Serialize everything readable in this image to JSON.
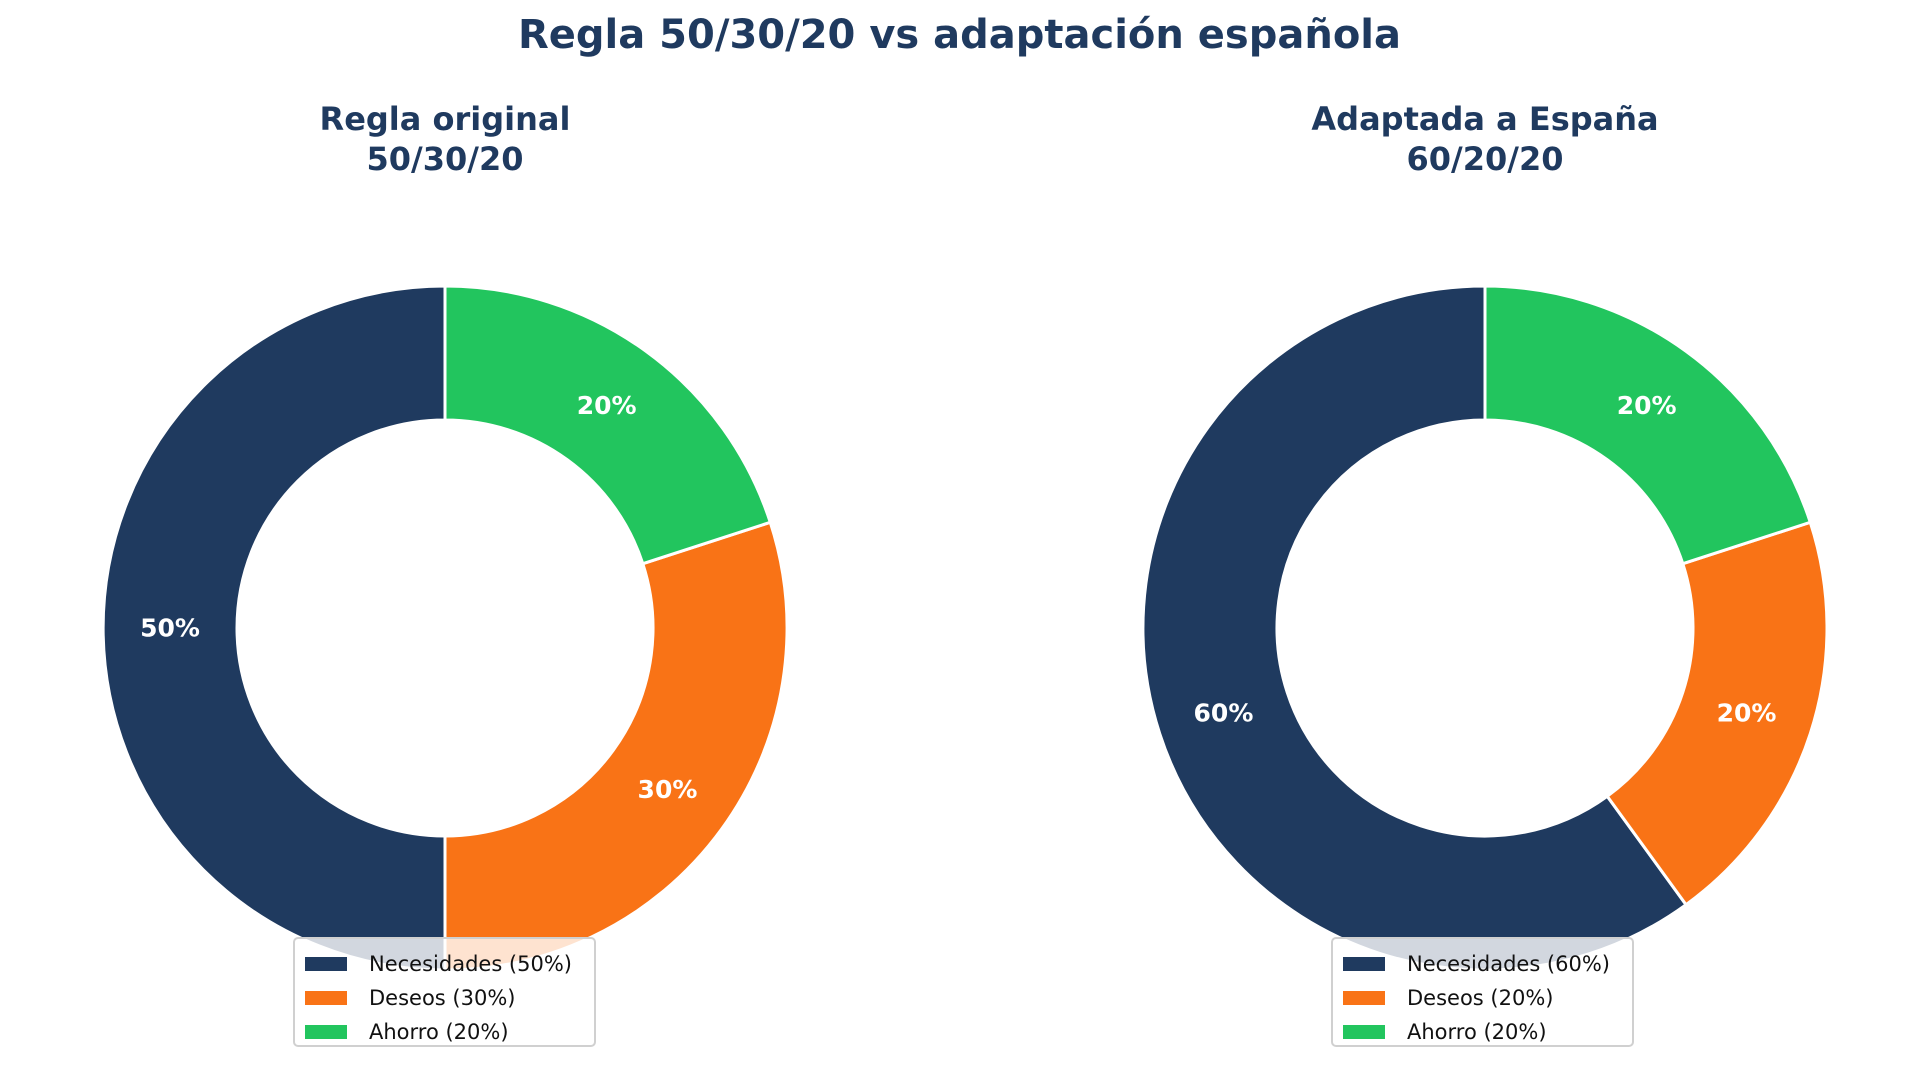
{
  "title": "Regla 50/30/20 vs adaptación española",
  "chart_data": [
    {
      "type": "pie",
      "subtitle": [
        "Regla original",
        "50/30/20"
      ],
      "categories": [
        "Necesidades",
        "Deseos",
        "Ahorro"
      ],
      "values": [
        50,
        30,
        20
      ],
      "labels": [
        "50%",
        "30%",
        "20%"
      ],
      "legend": [
        "Necesidades (50%)",
        "Deseos (30%)",
        "Ahorro (20%)"
      ],
      "colors": [
        "#1f3a5f",
        "#f97316",
        "#22c55e"
      ],
      "donut": true,
      "start_angle": 90,
      "legend_placement": "bottom-center"
    },
    {
      "type": "pie",
      "subtitle": [
        "Adaptada a España",
        "60/20/20"
      ],
      "categories": [
        "Necesidades",
        "Deseos",
        "Ahorro"
      ],
      "values": [
        60,
        20,
        20
      ],
      "labels": [
        "60%",
        "20%",
        "20%"
      ],
      "legend": [
        "Necesidades (60%)",
        "Deseos (20%)",
        "Ahorro (20%)"
      ],
      "colors": [
        "#1f3a5f",
        "#f97316",
        "#22c55e"
      ],
      "donut": true,
      "start_angle": 90,
      "legend_placement": "bottom-center"
    }
  ]
}
